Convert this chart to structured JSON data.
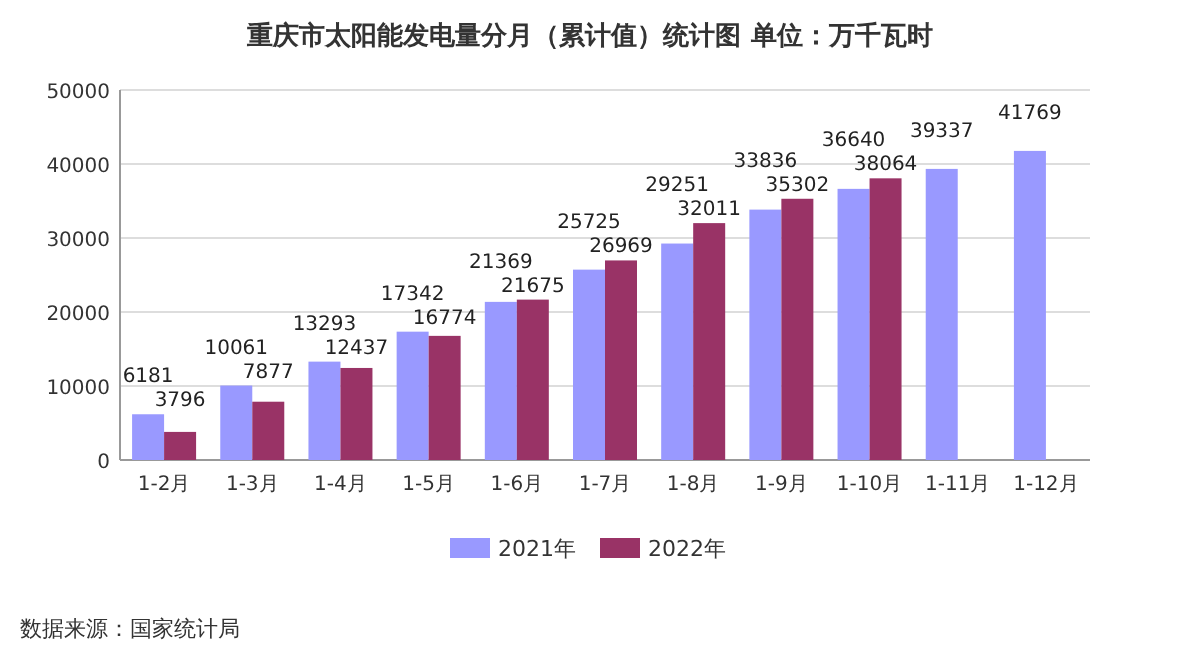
{
  "chart_data": {
    "type": "bar",
    "title": "重庆市太阳能发电量分月（累计值）统计图 单位：万千瓦时",
    "categories": [
      "1-2月",
      "1-3月",
      "1-4月",
      "1-5月",
      "1-6月",
      "1-7月",
      "1-8月",
      "1-9月",
      "1-10月",
      "1-11月",
      "1-12月"
    ],
    "series": [
      {
        "name": "2021年",
        "color": "#9999ff",
        "values": [
          6181,
          10061,
          13293,
          17342,
          21369,
          25725,
          29251,
          33836,
          36640,
          39337,
          41769
        ]
      },
      {
        "name": "2022年",
        "color": "#993366",
        "values": [
          3796,
          7877,
          12437,
          16774,
          21675,
          26969,
          32011,
          35302,
          38064,
          null,
          null
        ]
      }
    ],
    "ylim": [
      0,
      50000
    ],
    "yticks": [
      0,
      10000,
      20000,
      30000,
      40000,
      50000
    ],
    "grid": "y",
    "legend": "bottom",
    "data_labels": true,
    "annotations": [
      "数据来源：国家统计局"
    ]
  }
}
